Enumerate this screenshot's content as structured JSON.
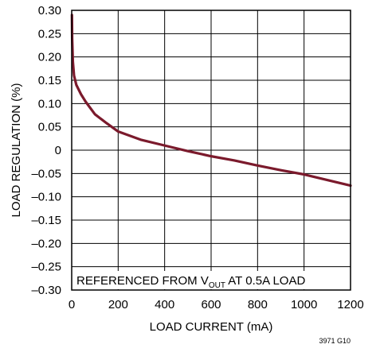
{
  "chart_data": {
    "type": "line",
    "xlabel": "LOAD CURRENT (mA)",
    "ylabel": "LOAD REGULATION (%)",
    "xlim": [
      0,
      1200
    ],
    "ylim": [
      -0.3,
      0.3
    ],
    "x_ticks": [
      0,
      200,
      400,
      600,
      800,
      1000,
      1200
    ],
    "x_tick_labels": [
      "0",
      "200",
      "400",
      "600",
      "800",
      "1000",
      "1200"
    ],
    "y_ticks": [
      0.3,
      0.25,
      0.2,
      0.15,
      0.1,
      0.05,
      0,
      -0.05,
      -0.1,
      -0.15,
      -0.2,
      -0.25,
      -0.3
    ],
    "y_tick_labels": [
      "0.30",
      "0.25",
      "0.20",
      "0.15",
      "0.10",
      "0.05",
      "0",
      "–0.05",
      "–0.10",
      "–0.15",
      "–0.20",
      "–0.25",
      "–0.30"
    ],
    "grid": true,
    "annotation": {
      "prefix": "REFERENCED FROM V",
      "subscript": "OUT",
      "suffix": " AT 0.5A LOAD"
    },
    "figure_id": "3971 G10",
    "series": [
      {
        "color": "#7b1a2c",
        "x": [
          1,
          2,
          5,
          10,
          20,
          40,
          60,
          100,
          150,
          200,
          300,
          400,
          500,
          600,
          700,
          800,
          900,
          1000,
          1100,
          1200
        ],
        "y": [
          0.29,
          0.24,
          0.19,
          0.16,
          0.14,
          0.12,
          0.104,
          0.077,
          0.058,
          0.04,
          0.022,
          0.01,
          -0.002,
          -0.013,
          -0.022,
          -0.033,
          -0.043,
          -0.052,
          -0.064,
          -0.076
        ]
      }
    ]
  }
}
